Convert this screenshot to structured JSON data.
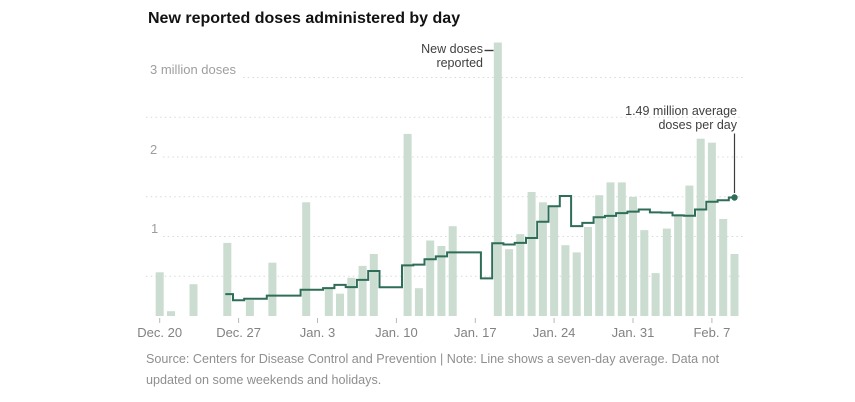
{
  "chart_data": {
    "type": "bar",
    "line_overlay": "seven_day_avg",
    "title": "New reported doses administered by day",
    "unit": "million doses",
    "ylim": [
      0,
      3.5
    ],
    "gridlines": [
      0.5,
      1,
      1.5,
      2,
      2.5,
      3
    ],
    "grid_style": "dashed",
    "y_axis_labels": [
      "3 million doses",
      "2",
      "1"
    ],
    "x_tick_labels": [
      "Dec. 20",
      "Dec. 27",
      "Jan. 3",
      "Jan. 10",
      "Jan. 17",
      "Jan. 24",
      "Jan. 31",
      "Feb. 7"
    ],
    "x_tick_day_indices": [
      0,
      7,
      14,
      21,
      28,
      35,
      42,
      49
    ],
    "dates": [
      "Dec. 20",
      "Dec. 21",
      "Dec. 22",
      "Dec. 23",
      "Dec. 24",
      "Dec. 25",
      "Dec. 26",
      "Dec. 27",
      "Dec. 28",
      "Dec. 29",
      "Dec. 30",
      "Dec. 31",
      "Jan. 1",
      "Jan. 2",
      "Jan. 3",
      "Jan. 4",
      "Jan. 5",
      "Jan. 6",
      "Jan. 7",
      "Jan. 8",
      "Jan. 9",
      "Jan. 10",
      "Jan. 11",
      "Jan. 12",
      "Jan. 13",
      "Jan. 14",
      "Jan. 15",
      "Jan. 16",
      "Jan. 17",
      "Jan. 18",
      "Jan. 19",
      "Jan. 20",
      "Jan. 21",
      "Jan. 22",
      "Jan. 23",
      "Jan. 24",
      "Jan. 25",
      "Jan. 26",
      "Jan. 27",
      "Jan. 28",
      "Jan. 29",
      "Jan. 30",
      "Jan. 31",
      "Feb. 1",
      "Feb. 2",
      "Feb. 3",
      "Feb. 4",
      "Feb. 5",
      "Feb. 6",
      "Feb. 7",
      "Feb. 8",
      "Feb. 9"
    ],
    "values": [
      0.55,
      0.06,
      0,
      0.4,
      0,
      0,
      0.92,
      0,
      0.2,
      0,
      0.67,
      0,
      0,
      1.43,
      0,
      0.36,
      0.28,
      0.48,
      0.63,
      0.78,
      0,
      0,
      2.29,
      0.35,
      0.95,
      0.88,
      1.13,
      0,
      0,
      0,
      3.44,
      0.84,
      1.03,
      1.56,
      1.43,
      1.37,
      0.89,
      0.8,
      1.12,
      1.52,
      1.68,
      1.68,
      1.5,
      1.08,
      0.54,
      1.1,
      1.28,
      1.64,
      2.23,
      2.18,
      1.22,
      0.78
    ],
    "seven_day_avg": {
      "start_index": 6,
      "values": [
        0.276,
        0.197,
        0.217,
        0.217,
        0.256,
        0.256,
        0.256,
        0.329,
        0.329,
        0.351,
        0.391,
        0.364,
        0.454,
        0.566,
        0.361,
        0.361,
        0.637,
        0.647,
        0.714,
        0.75,
        0.8,
        0.8,
        0.8,
        0.473,
        0.914,
        0.899,
        0.92,
        0.981,
        1.186,
        1.381,
        1.509,
        1.131,
        1.171,
        1.241,
        1.259,
        1.294,
        1.313,
        1.34,
        1.303,
        1.3,
        1.266,
        1.26,
        1.339,
        1.436,
        1.456,
        1.49
      ]
    },
    "annotations": [
      {
        "text_lines": [
          "New doses",
          "reported"
        ],
        "target_date": "Jan. 19"
      },
      {
        "text_lines": [
          "1.49 million average",
          "doses per day"
        ],
        "target_date": "Feb. 9"
      }
    ],
    "colors": {
      "bar": "#cbdcd1",
      "line": "#2e6d57",
      "grid": "#d9d9d9",
      "tick": "#b8b8b8",
      "annotation_connector": "#3c3c3c"
    }
  },
  "source_note": {
    "line1": "Source: Centers for Disease Control and Prevention | Note: Line shows a seven-day average. Data not",
    "line2": "updated on some weekends and holidays."
  }
}
